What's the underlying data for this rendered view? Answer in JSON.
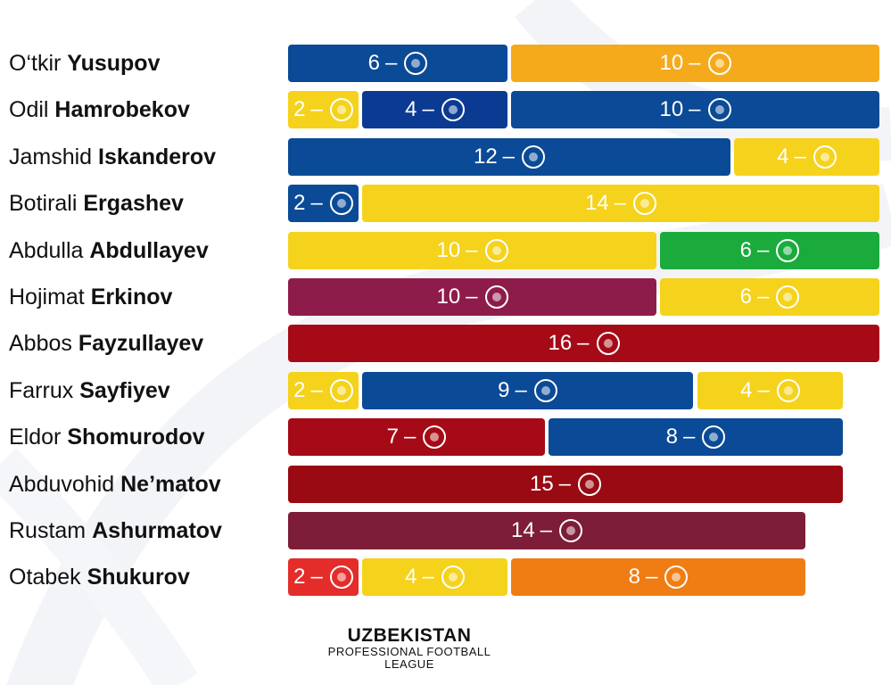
{
  "chart_data": {
    "type": "bar",
    "orientation": "horizontal",
    "stacked": true,
    "grid": false,
    "players": [
      {
        "first": "O‘tkir",
        "last": "Yusupov",
        "segments": [
          {
            "value": 6,
            "color": "#0b4a96",
            "logo": "club-crest-icon"
          },
          {
            "value": 10,
            "color": "#f5aa1b",
            "logo": "club-shield-icon"
          }
        ]
      },
      {
        "first": "Odil",
        "last": "Hamrobekov",
        "segments": [
          {
            "value": 2,
            "color": "#f5d21c",
            "logo": "club-crest-icon"
          },
          {
            "value": 4,
            "color": "#0a3a92",
            "logo": "club-shield-icon"
          },
          {
            "value": 10,
            "color": "#0b4a96",
            "logo": "club-crest-icon"
          }
        ]
      },
      {
        "first": "Jamshid",
        "last": "Iskanderov",
        "segments": [
          {
            "value": 12,
            "color": "#0b4a96",
            "logo": "club-crest-icon"
          },
          {
            "value": 4,
            "color": "#f5d21c",
            "logo": "club-crest-icon"
          }
        ]
      },
      {
        "first": "Botirali",
        "last": "Ergashev",
        "segments": [
          {
            "value": 2,
            "color": "#0b4a96",
            "logo": "club-crest-icon"
          },
          {
            "value": 14,
            "color": "#f5d21c",
            "logo": "club-crest-icon"
          }
        ]
      },
      {
        "first": "Abdulla",
        "last": "Abdullayev",
        "segments": [
          {
            "value": 10,
            "color": "#f5d21c",
            "logo": "club-crest-icon"
          },
          {
            "value": 6,
            "color": "#1aab3c",
            "logo": "club-shield-icon"
          }
        ]
      },
      {
        "first": "Hojimat",
        "last": "Erkinov",
        "segments": [
          {
            "value": 10,
            "color": "#8e1c4a",
            "logo": "club-shield-icon"
          },
          {
            "value": 6,
            "color": "#f5d21c",
            "logo": "club-crest-icon"
          }
        ]
      },
      {
        "first": "Abbos",
        "last": "Fayzullayev",
        "segments": [
          {
            "value": 16,
            "color": "#a60a17",
            "logo": "club-shield-icon"
          }
        ]
      },
      {
        "first": "Farrux",
        "last": "Sayfiyev",
        "segments": [
          {
            "value": 2,
            "color": "#f5d21c",
            "logo": "club-crest-icon"
          },
          {
            "value": 9,
            "color": "#0b4a96",
            "logo": "club-crest-icon"
          },
          {
            "value": 4,
            "color": "#f5d21c",
            "logo": "club-crest-icon"
          }
        ]
      },
      {
        "first": "Eldor",
        "last": "Shomurodov",
        "segments": [
          {
            "value": 7,
            "color": "#a60a17",
            "logo": "club-shield-icon"
          },
          {
            "value": 8,
            "color": "#0b4a96",
            "logo": "club-shield-icon"
          }
        ]
      },
      {
        "first": "Abduvohid",
        "last": "Ne’matov",
        "segments": [
          {
            "value": 15,
            "color": "#9a0a12",
            "logo": "club-crest-icon"
          }
        ]
      },
      {
        "first": "Rustam",
        "last": "Ashurmatov",
        "segments": [
          {
            "value": 14,
            "color": "#7d1d38",
            "logo": "club-shield-icon"
          }
        ]
      },
      {
        "first": "Otabek",
        "last": "Shukurov",
        "segments": [
          {
            "value": 2,
            "color": "#e42d2a",
            "logo": "club-crest-icon"
          },
          {
            "value": 4,
            "color": "#f5d21c",
            "logo": "club-shield-icon"
          },
          {
            "value": 8,
            "color": "#ef7d13",
            "logo": "club-shield-icon"
          }
        ]
      }
    ]
  },
  "branding": {
    "line1": "UZBEKISTAN",
    "line2": "PROFESSIONAL FOOTBALL",
    "line3": "LEAGUE"
  }
}
